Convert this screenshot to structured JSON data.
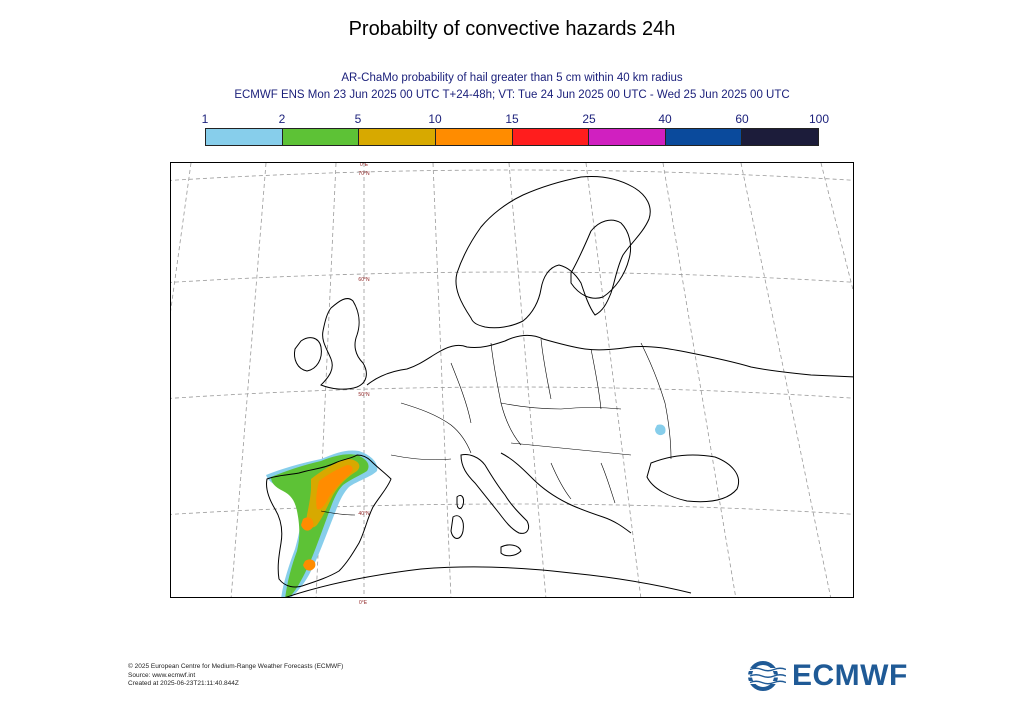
{
  "title": "Probabilty of convective hazards 24h",
  "subtitle_line1": "AR-ChaMo probability of hail greater than 5 cm within 40 km radius",
  "subtitle_line2": "ECMWF ENS Mon 23 Jun 2025 00 UTC T+24-48h; VT: Tue 24 Jun 2025 00 UTC - Wed 25 Jun 2025 00 UTC",
  "legend": {
    "ticks": [
      "1",
      "2",
      "5",
      "10",
      "15",
      "25",
      "40",
      "60",
      "100"
    ],
    "colors": [
      "#87ceeb",
      "#5dc236",
      "#d7a900",
      "#ff8c00",
      "#ff1d1d",
      "#d020c0",
      "#0a4a9c",
      "#1c1c3a"
    ]
  },
  "map": {
    "meridian_label": "0°E",
    "latitude_labels": [
      "70°N",
      "60°N",
      "50°N",
      "40°N"
    ],
    "colors": {
      "coast": "#000000",
      "grid": "#9a9a9a",
      "label": "#8a1a1a"
    }
  },
  "footer": {
    "copyright": "© 2025 European Centre for Medium-Range Weather Forecasts (ECMWF)",
    "source": "Source: www.ecmwf.int",
    "created": "Created at 2025-06-23T21:11:40.844Z"
  },
  "logo": {
    "text": "ECMWF",
    "color": "#1f5a96"
  }
}
